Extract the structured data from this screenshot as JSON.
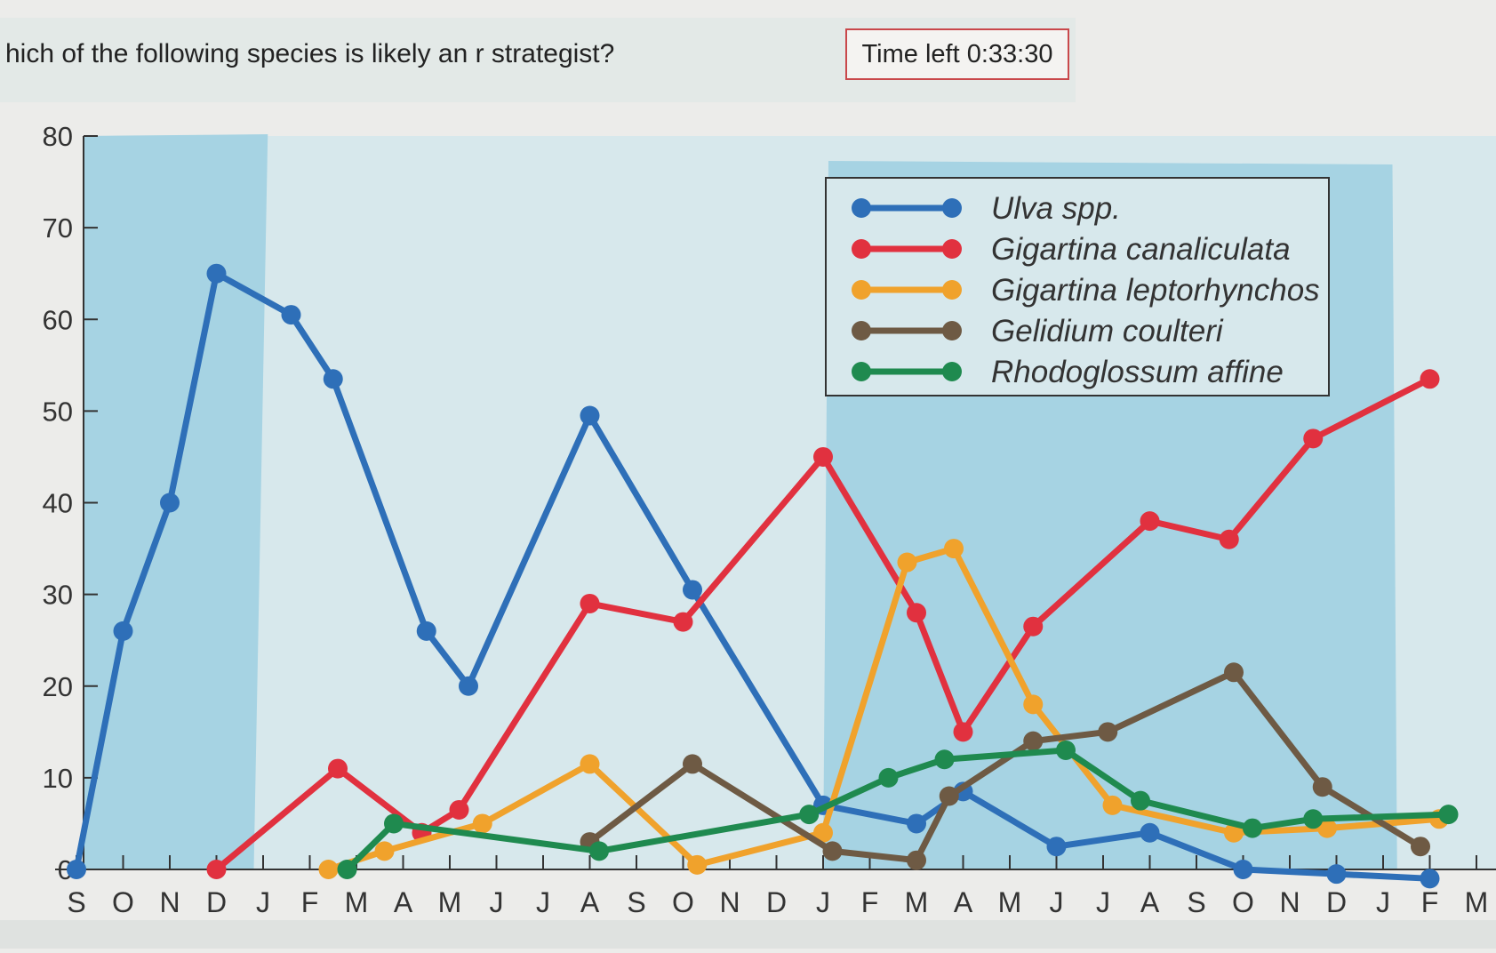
{
  "question": {
    "text": "hich of the following species is likely an r strategist?",
    "timer": "Time left 0:33:30"
  },
  "colors": {
    "Ulva spp.": "#2e6fb8",
    "Gigartina canaliculata": "#e1313f",
    "Gigartina leptorhynchos": "#f0a22c",
    "Gelidium coulteri": "#6e5a44",
    "Rhodoglossum affine": "#1f8a4f",
    "band_dark": "#a6d3e3",
    "band_light": "#d7e8ec"
  },
  "chart_data": {
    "type": "line",
    "title": "",
    "xlabel": "",
    "ylabel": "",
    "ylim": [
      0,
      80
    ],
    "yticks": [
      0,
      10,
      20,
      30,
      40,
      50,
      60,
      70,
      80
    ],
    "categories": [
      "S",
      "O",
      "N",
      "D",
      "J",
      "F",
      "M",
      "A",
      "M",
      "J",
      "J",
      "A",
      "S",
      "O",
      "N",
      "D",
      "J",
      "F",
      "M",
      "A",
      "M",
      "J",
      "J",
      "A",
      "S",
      "O",
      "N",
      "D",
      "J",
      "F",
      "M"
    ],
    "legend_position": "top-right",
    "series": [
      {
        "name": "Ulva spp.",
        "x": [
          0,
          1,
          2,
          3,
          4.6,
          5.5,
          7.5,
          8.4,
          11,
          13.2,
          16,
          18,
          19,
          21,
          23,
          25,
          27,
          29
        ],
        "values": [
          0,
          26,
          40,
          65,
          60.5,
          53.5,
          26,
          20,
          49.5,
          30.5,
          7,
          5,
          8.5,
          2.5,
          4,
          0,
          -0.5,
          -1
        ]
      },
      {
        "name": "Gigartina canaliculata",
        "x": [
          3,
          5.6,
          7.4,
          8.2,
          11,
          13,
          16,
          18,
          19,
          20.5,
          23,
          24.7,
          26.5,
          29
        ],
        "values": [
          0,
          11,
          4,
          6.5,
          29,
          27,
          45,
          28,
          15,
          26.5,
          38,
          36,
          47,
          53.5
        ]
      },
      {
        "name": "Gigartina leptorhynchos",
        "x": [
          5.4,
          6.6,
          8.7,
          11,
          13.3,
          16,
          17.8,
          18.8,
          20.5,
          22.2,
          24.8,
          26.8,
          29.2
        ],
        "values": [
          0,
          2,
          5,
          11.5,
          0.5,
          4,
          33.5,
          35,
          18,
          7,
          4,
          4.5,
          5.5
        ]
      },
      {
        "name": "Gelidium coulteri",
        "x": [
          11,
          13.2,
          16.2,
          18,
          18.7,
          20.5,
          22.1,
          24.8,
          26.7,
          28.8
        ],
        "values": [
          3,
          11.5,
          2,
          1,
          8,
          14,
          15,
          21.5,
          9,
          2.5
        ]
      },
      {
        "name": "Rhodoglossum affine",
        "x": [
          5.8,
          6.8,
          11.2,
          15.7,
          17.4,
          18.6,
          21.2,
          22.8,
          25.2,
          26.5,
          29.4
        ],
        "values": [
          0,
          5,
          2,
          6,
          10,
          12,
          13,
          7.5,
          4.5,
          5.5,
          6
        ]
      }
    ]
  }
}
